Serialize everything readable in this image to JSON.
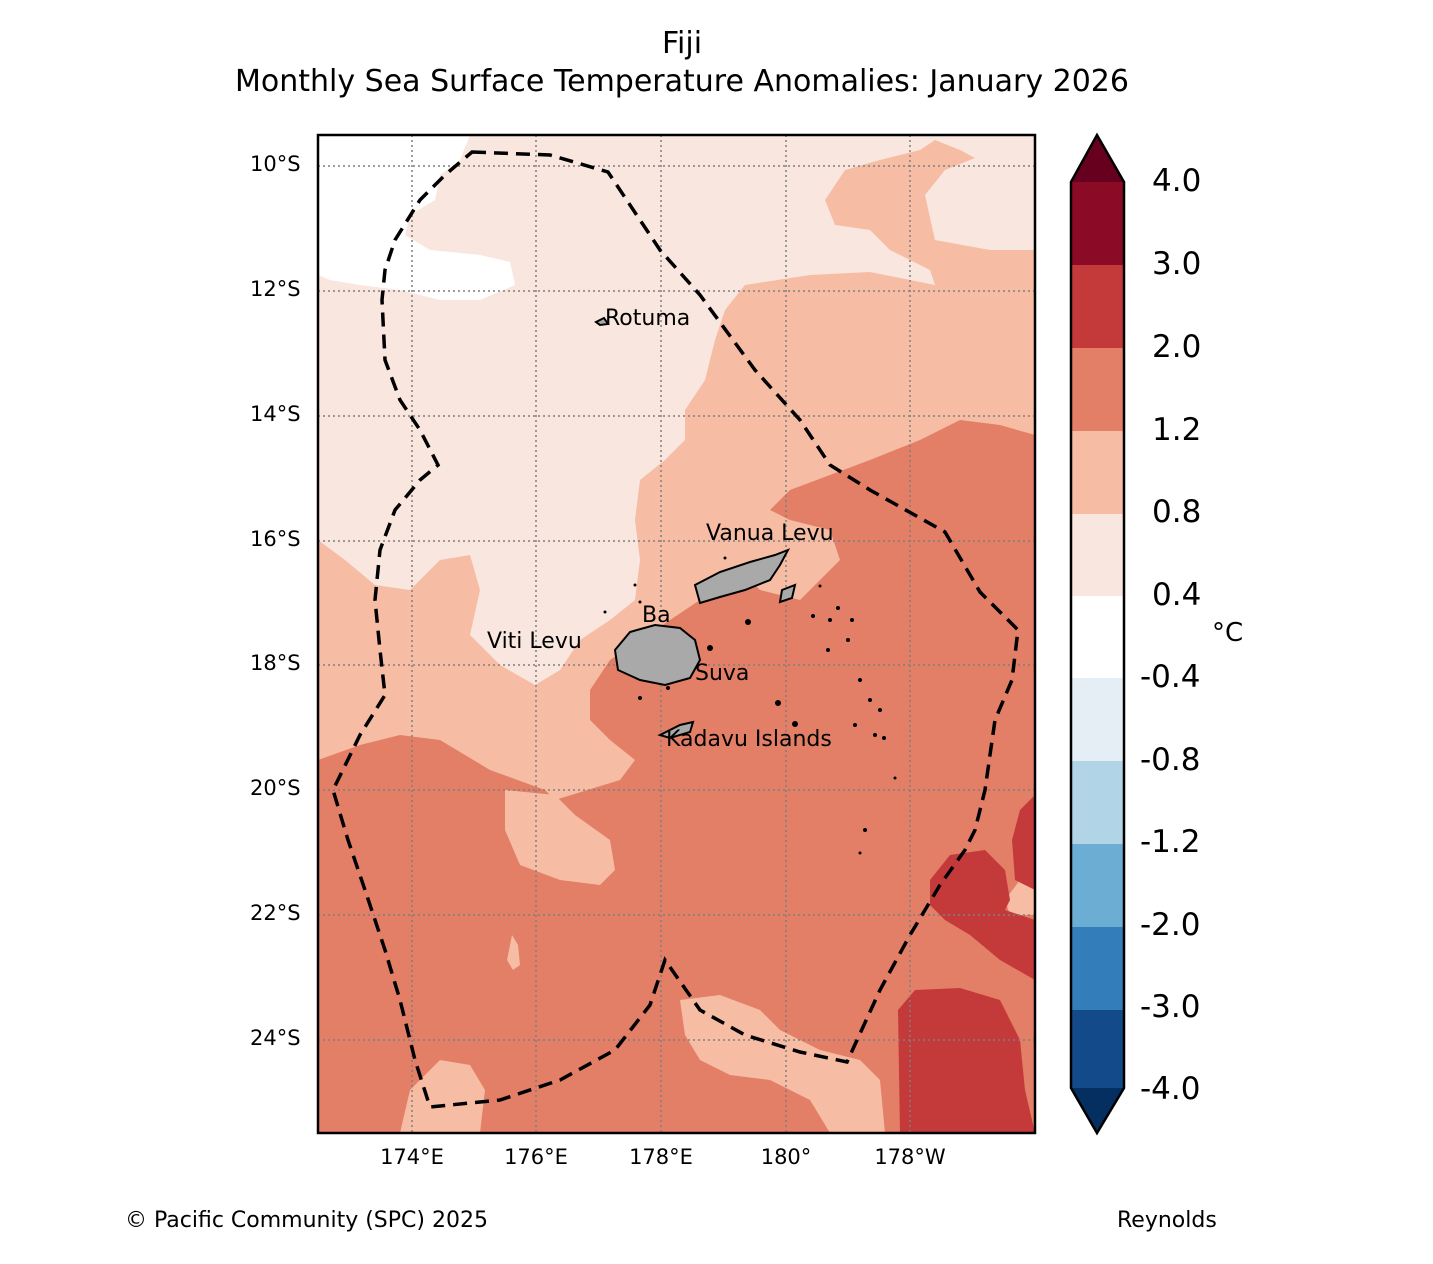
{
  "title": {
    "region": "Fiji",
    "subtitle": "Monthly Sea Surface Temperature Anomalies: January 2026"
  },
  "map": {
    "lat_labels": [
      "10°S",
      "12°S",
      "14°S",
      "16°S",
      "18°S",
      "20°S",
      "22°S",
      "24°S"
    ],
    "lon_labels": [
      "174°E",
      "176°E",
      "178°E",
      "180°",
      "178°W"
    ],
    "places": [
      "Rotuma",
      "Vanua Levu",
      "Ba",
      "Viti Levu",
      "Suva",
      "Kadavu Islands"
    ],
    "eez_boundary": "dashed-black",
    "land_color": "#a9a9a9"
  },
  "colorbar": {
    "unit": "°C",
    "ticks": [
      "4.0",
      "3.0",
      "2.0",
      "1.2",
      "0.8",
      "0.4",
      "-0.4",
      "-0.8",
      "-1.2",
      "-2.0",
      "-3.0",
      "-4.0"
    ],
    "colors_top_to_bottom": [
      "#67001f",
      "#8b0a26",
      "#c43a3a",
      "#e27f66",
      "#f7bca4",
      "#f9e7df",
      "#ffffff",
      "#e5edf5",
      "#b2d4e7",
      "#6badd3",
      "#327dba",
      "#134a89",
      "#062f61"
    ]
  },
  "footer": {
    "copyright": "© Pacific Community (SPC) 2025",
    "source": "Reynolds"
  }
}
